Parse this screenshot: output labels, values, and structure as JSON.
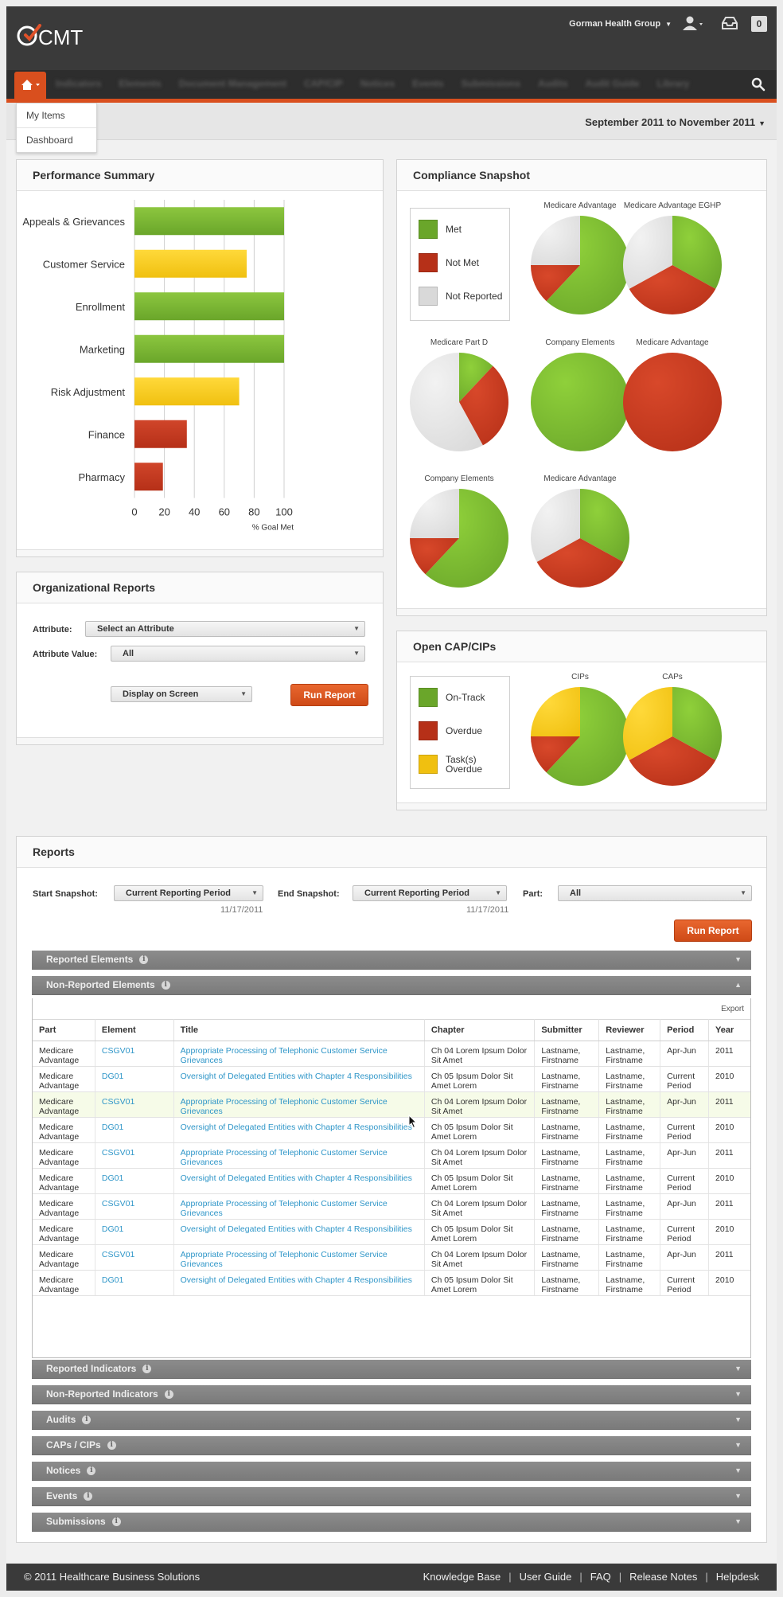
{
  "header": {
    "logo_text": "CMT",
    "org_name": "Gorman Health Group",
    "notification_count": "0",
    "nav_items": [
      "Indicators",
      "Elements",
      "Document Management",
      "CAP/CIP",
      "Notices",
      "Events",
      "Submissions",
      "Audits",
      "Audit Guide",
      "Library"
    ],
    "icons": [
      "home-icon",
      "search-icon",
      "user-icon",
      "inbox-icon"
    ],
    "accent_color": "#d94f1e"
  },
  "home_menu": {
    "items": [
      "My Items",
      "Dashboard"
    ]
  },
  "date_range": "September 2011 to November 2011",
  "performance": {
    "title": "Performance Summary",
    "chart_data": {
      "type": "bar",
      "orientation": "horizontal",
      "categories": [
        "Appeals & Grievances",
        "Customer Service",
        "Enrollment",
        "Marketing",
        "Risk Adjustment",
        "Finance",
        "Pharmacy"
      ],
      "values": [
        100,
        75,
        100,
        100,
        70,
        35,
        19
      ],
      "colors": [
        "#6aa62a",
        "#f0c010",
        "#6aa62a",
        "#6aa62a",
        "#f0c010",
        "#b63018",
        "#b63018"
      ],
      "xlim": [
        0,
        100
      ],
      "xticks": [
        0,
        20,
        40,
        60,
        80,
        100
      ],
      "xlabel": "% Goal Met",
      "grid": true
    }
  },
  "compliance": {
    "title": "Compliance Snapshot",
    "legend": [
      {
        "label": "Met",
        "color": "#6aa62a"
      },
      {
        "label": "Not Met",
        "color": "#b63018"
      },
      {
        "label": "Not Reported",
        "color": "#d9d9d9"
      }
    ],
    "chart_data": [
      {
        "type": "pie",
        "title": "Medicare Advantage",
        "values": [
          62,
          13,
          25
        ]
      },
      {
        "type": "pie",
        "title": "Medicare Advantage EGHP",
        "values": [
          33,
          34,
          33
        ]
      },
      {
        "type": "pie",
        "title": "Medicare Part D",
        "values": [
          12,
          30,
          58
        ]
      },
      {
        "type": "pie",
        "title": "Company Elements",
        "values": [
          100,
          0,
          0
        ]
      },
      {
        "type": "pie",
        "title": "Medicare Advantage",
        "values": [
          0,
          100,
          0
        ]
      },
      {
        "type": "pie",
        "title": "Company Elements",
        "values": [
          62,
          13,
          25
        ]
      },
      {
        "type": "pie",
        "title": "Medicare Advantage",
        "values": [
          33,
          34,
          33
        ]
      }
    ]
  },
  "org_reports": {
    "title": "Organizational Reports",
    "attribute_label": "Attribute:",
    "attribute_value": "Select an Attribute",
    "attribute_value_label": "Attribute Value:",
    "attribute_value_value": "All",
    "display_value": "Display on Screen",
    "run_label": "Run Report"
  },
  "open_caps": {
    "title": "Open CAP/CIPs",
    "legend": [
      {
        "label": "On-Track",
        "color": "#6aa62a"
      },
      {
        "label": "Overdue",
        "color": "#b63018"
      },
      {
        "label": "Task(s) Overdue",
        "color": "#f0c010"
      }
    ],
    "chart_data": [
      {
        "type": "pie",
        "title": "CIPs",
        "values": [
          62,
          13,
          25
        ]
      },
      {
        "type": "pie",
        "title": "CAPs",
        "values": [
          33,
          34,
          33
        ]
      }
    ]
  },
  "reports": {
    "title": "Reports",
    "start_label": "Start Snapshot:",
    "start_value": "Current Reporting Period",
    "start_date": "11/17/2011",
    "end_label": "End Snapshot:",
    "end_value": "Current Reporting Period",
    "end_date": "11/17/2011",
    "part_label": "Part:",
    "part_value": "All",
    "run_label": "Run Report",
    "export_label": "Export",
    "sections_top": [
      {
        "label": "Reported Elements",
        "expanded": false
      },
      {
        "label": "Non-Reported Elements",
        "expanded": true
      }
    ],
    "sections_bottom": [
      "Reported Indicators",
      "Non-Reported Indicators",
      "Audits",
      "CAPs / CIPs",
      "Notices",
      "Events",
      "Submissions"
    ],
    "columns": [
      "Part",
      "Element",
      "Title",
      "Chapter",
      "Submitter",
      "Reviewer",
      "Period",
      "Year"
    ],
    "rows": [
      [
        "Medicare Advantage",
        "CSGV01",
        "Appropriate Processing of Telephonic Customer Service Grievances",
        "Ch 04 Lorem Ipsum Dolor Sit Amet",
        "Lastname, Firstname",
        "Lastname, Firstname",
        "Apr-Jun",
        "2011"
      ],
      [
        "Medicare Advantage",
        "DG01",
        "Oversight of Delegated Entities with Chapter 4 Responsibilities",
        "Ch 05 Ipsum Dolor Sit Amet Lorem",
        "Lastname, Firstname",
        "Lastname, Firstname",
        "Current Period",
        "2010"
      ],
      [
        "Medicare Advantage",
        "CSGV01",
        "Appropriate Processing of Telephonic Customer Service Grievances",
        "Ch 04 Lorem Ipsum Dolor Sit Amet",
        "Lastname, Firstname",
        "Lastname, Firstname",
        "Apr-Jun",
        "2011"
      ],
      [
        "Medicare Advantage",
        "DG01",
        "Oversight of Delegated Entities with Chapter 4 Responsibilities",
        "Ch 05 Ipsum Dolor Sit Amet Lorem",
        "Lastname, Firstname",
        "Lastname, Firstname",
        "Current Period",
        "2010"
      ],
      [
        "Medicare Advantage",
        "CSGV01",
        "Appropriate Processing of Telephonic Customer Service Grievances",
        "Ch 04 Lorem Ipsum Dolor Sit Amet",
        "Lastname, Firstname",
        "Lastname, Firstname",
        "Apr-Jun",
        "2011"
      ],
      [
        "Medicare Advantage",
        "DG01",
        "Oversight of Delegated Entities with Chapter 4 Responsibilities",
        "Ch 05 Ipsum Dolor Sit Amet Lorem",
        "Lastname, Firstname",
        "Lastname, Firstname",
        "Current Period",
        "2010"
      ],
      [
        "Medicare Advantage",
        "CSGV01",
        "Appropriate Processing of Telephonic Customer Service Grievances",
        "Ch 04 Lorem Ipsum Dolor Sit Amet",
        "Lastname, Firstname",
        "Lastname, Firstname",
        "Apr-Jun",
        "2011"
      ],
      [
        "Medicare Advantage",
        "DG01",
        "Oversight of Delegated Entities with Chapter 4 Responsibilities",
        "Ch 05 Ipsum Dolor Sit Amet Lorem",
        "Lastname, Firstname",
        "Lastname, Firstname",
        "Current Period",
        "2010"
      ],
      [
        "Medicare Advantage",
        "CSGV01",
        "Appropriate Processing of Telephonic Customer Service Grievances",
        "Ch 04 Lorem Ipsum Dolor Sit Amet",
        "Lastname, Firstname",
        "Lastname, Firstname",
        "Apr-Jun",
        "2011"
      ],
      [
        "Medicare Advantage",
        "DG01",
        "Oversight of Delegated Entities with Chapter 4 Responsibilities",
        "Ch 05 Ipsum Dolor Sit Amet Lorem",
        "Lastname, Firstname",
        "Lastname, Firstname",
        "Current Period",
        "2010"
      ]
    ],
    "highlighted_row": 2
  },
  "footer": {
    "copyright": "© 2011 Healthcare Business Solutions",
    "links": [
      "Knowledge Base",
      "User Guide",
      "FAQ",
      "Release Notes",
      "Helpdesk"
    ]
  }
}
